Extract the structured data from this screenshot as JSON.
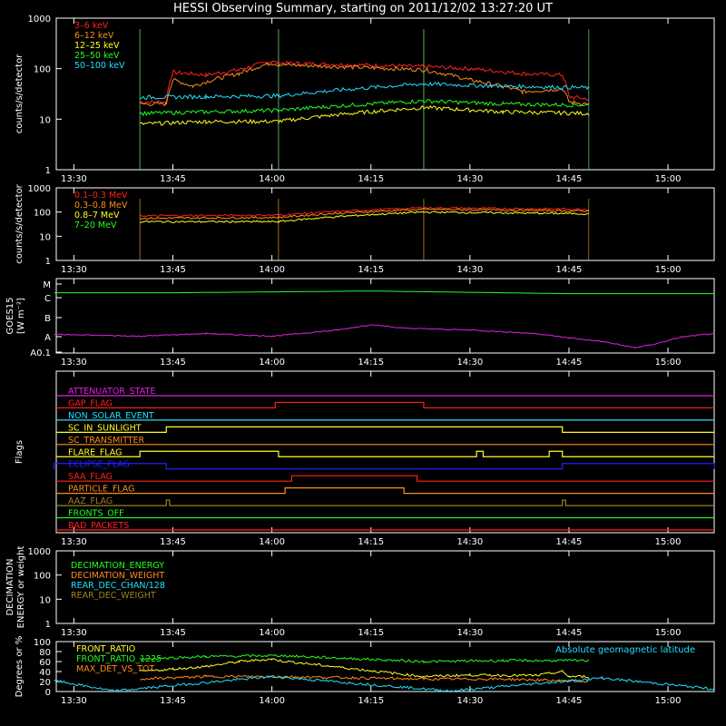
{
  "title": "HESSI Observing Summary, starting on 2011/12/02 13:27:20 UT",
  "colors": {
    "background": "#000000",
    "axis": "#ffffff",
    "red": "#ff2020",
    "orange": "#ff8c1a",
    "yellow": "#ffff20",
    "green": "#20ff20",
    "cyan": "#20e0ff",
    "magenta": "#e020e0",
    "blue": "#2020ff",
    "olive": "#a08020"
  },
  "time_ticks": [
    "13:30",
    "13:45",
    "14:00",
    "14:15",
    "14:30",
    "14:45",
    "15:00"
  ],
  "time_range": [
    "13:27:20",
    "15:07"
  ],
  "chart_data": [
    {
      "type": "line",
      "panel": "low-energy",
      "ylabel": "counts/s/detector",
      "yscale": "log",
      "ylim": [
        1,
        1000
      ],
      "yticks": [
        "1",
        "10",
        "100",
        "1000"
      ],
      "intervals": [
        [
          "13:40",
          "14:01"
        ],
        [
          "14:23",
          "14:48"
        ]
      ],
      "series": [
        {
          "name": "3–6 keV",
          "color": "red",
          "points": [
            [
              "13:40",
              22
            ],
            [
              "13:44",
              22
            ],
            [
              "13:45",
              85
            ],
            [
              "13:50",
              75
            ],
            [
              "13:55",
              95
            ],
            [
              "14:00",
              140
            ],
            [
              "14:01",
              130
            ],
            [
              "14:23",
              110
            ],
            [
              "14:30",
              100
            ],
            [
              "14:38",
              80
            ],
            [
              "14:44",
              75
            ],
            [
              "14:45",
              28
            ],
            [
              "14:48",
              25
            ]
          ]
        },
        {
          "name": "6–12 keV",
          "color": "orange",
          "points": [
            [
              "13:40",
              20
            ],
            [
              "13:44",
              20
            ],
            [
              "13:45",
              60
            ],
            [
              "13:48",
              45
            ],
            [
              "13:55",
              80
            ],
            [
              "14:00",
              130
            ],
            [
              "14:01",
              120
            ],
            [
              "14:23",
              95
            ],
            [
              "14:30",
              60
            ],
            [
              "14:38",
              35
            ],
            [
              "14:44",
              40
            ],
            [
              "14:45",
              22
            ],
            [
              "14:48",
              20
            ]
          ]
        },
        {
          "name": "12–25 keV",
          "color": "yellow",
          "points": [
            [
              "13:40",
              8
            ],
            [
              "13:50",
              9
            ],
            [
              "14:01",
              9
            ],
            [
              "14:23",
              17
            ],
            [
              "14:35",
              14
            ],
            [
              "14:48",
              13
            ]
          ]
        },
        {
          "name": "25–50 keV",
          "color": "green",
          "points": [
            [
              "13:40",
              13
            ],
            [
              "13:50",
              14
            ],
            [
              "14:01",
              15
            ],
            [
              "14:23",
              23
            ],
            [
              "14:35",
              20
            ],
            [
              "14:48",
              19
            ]
          ]
        },
        {
          "name": "50–100 keV",
          "color": "cyan",
          "points": [
            [
              "13:40",
              27
            ],
            [
              "13:50",
              28
            ],
            [
              "14:01",
              29
            ],
            [
              "14:23",
              50
            ],
            [
              "14:35",
              45
            ],
            [
              "14:48",
              42
            ]
          ]
        }
      ]
    },
    {
      "type": "line",
      "panel": "high-energy",
      "ylabel": "counts/s/detector",
      "yscale": "log",
      "ylim": [
        1,
        1000
      ],
      "yticks": [
        "1",
        "10",
        "100",
        "1000"
      ],
      "intervals": [
        [
          "13:40",
          "14:01"
        ],
        [
          "14:23",
          "14:48"
        ]
      ],
      "series": [
        {
          "name": "0.1–0.3 MeV",
          "color": "red",
          "points": [
            [
              "13:40",
              70
            ],
            [
              "14:01",
              75
            ],
            [
              "14:23",
              150
            ],
            [
              "14:48",
              130
            ]
          ]
        },
        {
          "name": "0.3–0.8 MeV",
          "color": "orange",
          "points": [
            [
              "13:40",
              55
            ],
            [
              "14:01",
              60
            ],
            [
              "14:23",
              130
            ],
            [
              "14:48",
              110
            ]
          ]
        },
        {
          "name": "0.8–7 MeV",
          "color": "yellow",
          "points": [
            [
              "13:40",
              40
            ],
            [
              "14:01",
              40
            ],
            [
              "14:23",
              100
            ],
            [
              "14:48",
              85
            ]
          ]
        },
        {
          "name": "7–20 MeV",
          "color": "green",
          "points": []
        }
      ]
    },
    {
      "type": "line",
      "panel": "goes",
      "ylabel": "GOES15",
      "ylabel2": "[W m⁻²]",
      "yticks": [
        "M",
        "C",
        "B",
        "A",
        "A0.1"
      ],
      "series": [
        {
          "name": "",
          "color": "green",
          "points": [
            [
              "13:27",
              2.0
            ],
            [
              "13:45",
              2.0
            ],
            [
              "14:15",
              2.1
            ],
            [
              "14:45",
              1.95
            ],
            [
              "15:07",
              1.95
            ]
          ]
        },
        {
          "name": "",
          "color": "magenta",
          "points": [
            [
              "13:27",
              -0.35
            ],
            [
              "13:40",
              -0.45
            ],
            [
              "13:50",
              -0.3
            ],
            [
              "14:00",
              -0.45
            ],
            [
              "14:10",
              -0.1
            ],
            [
              "14:15",
              0.2
            ],
            [
              "14:20",
              0.0
            ],
            [
              "14:30",
              -0.1
            ],
            [
              "14:40",
              -0.3
            ],
            [
              "14:45",
              -0.55
            ],
            [
              "14:50",
              -0.75
            ],
            [
              "14:55",
              -1.1
            ],
            [
              "14:58",
              -0.9
            ],
            [
              "15:02",
              -0.5
            ],
            [
              "15:07",
              -0.3
            ]
          ]
        }
      ]
    },
    {
      "type": "line",
      "panel": "flags",
      "ylabel": "Flags",
      "series": [
        {
          "name": "ATTENUATOR_STATE",
          "color": "magenta",
          "transitions": []
        },
        {
          "name": "GAP_FLAG",
          "color": "red",
          "transitions": [
            [
              "14:00:30",
              "14:23"
            ]
          ]
        },
        {
          "name": "NON_SOLAR_EVENT",
          "color": "cyan",
          "transitions": []
        },
        {
          "name": "SC_IN_SUNLIGHT",
          "color": "yellow",
          "transitions": [
            [
              "13:44",
              "14:44"
            ]
          ]
        },
        {
          "name": "SC_TRANSMITTER",
          "color": "orange",
          "transitions": []
        },
        {
          "name": "FLARE_FLAG",
          "color": "yellow",
          "transitions": [
            [
              "13:40",
              "14:01"
            ],
            [
              "14:31",
              "14:32"
            ],
            [
              "14:42",
              "14:44"
            ]
          ]
        },
        {
          "name": "ECLIPSE_FLAG",
          "color": "blue",
          "transitions": [
            [
              "13:27",
              "13:44"
            ],
            [
              "14:44",
              "15:07"
            ]
          ]
        },
        {
          "name": "SAA_FLAG",
          "color": "red",
          "transitions": [
            [
              "14:03",
              "14:22"
            ]
          ]
        },
        {
          "name": "PARTICLE_FLAG",
          "color": "orange",
          "transitions": [
            [
              "14:02",
              "14:20"
            ]
          ]
        },
        {
          "name": "AAZ_FLAG",
          "color": "olive",
          "transitions": [
            [
              "13:44",
              "13:44:30"
            ],
            [
              "14:44",
              "14:44:30"
            ]
          ]
        },
        {
          "name": "FRONTS_OFF",
          "color": "green",
          "transitions": []
        },
        {
          "name": "BAD_PACKETS",
          "color": "red",
          "transitions": []
        }
      ]
    },
    {
      "type": "line",
      "panel": "decimation",
      "ylabel": "DECIMATION",
      "ylabel2": "ENERGY or weight",
      "yscale": "log",
      "ylim": [
        1,
        1000
      ],
      "yticks": [
        "1",
        "10",
        "100",
        "1000"
      ],
      "series": [
        {
          "name": "DECIMATION_ENERGY",
          "color": "green",
          "points": []
        },
        {
          "name": "DECIMATION_WEIGHT",
          "color": "orange",
          "points": []
        },
        {
          "name": "REAR_DEC_CHAN/128",
          "color": "cyan",
          "points": []
        },
        {
          "name": "REAR_DEC_WEIGHT",
          "color": "olive",
          "points": []
        }
      ]
    },
    {
      "type": "line",
      "panel": "ratios",
      "ylabel": "Degrees or %",
      "ylim": [
        0,
        100
      ],
      "yticks": [
        "0",
        "20",
        "40",
        "60",
        "80",
        "100"
      ],
      "annotation": "Absolute geomagnetic latitude",
      "series": [
        {
          "name": "FRONT_RATIO",
          "color": "yellow",
          "points": [
            [
              "13:40",
              40
            ],
            [
              "13:45",
              45
            ],
            [
              "13:50",
              50
            ],
            [
              "13:55",
              60
            ],
            [
              "14:00",
              65
            ],
            [
              "14:01",
              62
            ],
            [
              "14:23",
              30
            ],
            [
              "14:30",
              33
            ],
            [
              "14:40",
              32
            ],
            [
              "14:44",
              40
            ],
            [
              "14:45",
              30
            ],
            [
              "14:48",
              30
            ]
          ]
        },
        {
          "name": "FRONT_RATIO_1225",
          "color": "green",
          "points": [
            [
              "13:40",
              65
            ],
            [
              "13:50",
              70
            ],
            [
              "14:01",
              72
            ],
            [
              "14:23",
              60
            ],
            [
              "14:35",
              62
            ],
            [
              "14:48",
              62
            ]
          ]
        },
        {
          "name": "MAX_DET_VS_TOT",
          "color": "orange",
          "points": [
            [
              "13:40",
              25
            ],
            [
              "13:50",
              30
            ],
            [
              "14:01",
              30
            ],
            [
              "14:23",
              25
            ],
            [
              "14:35",
              25
            ],
            [
              "14:48",
              20
            ]
          ]
        },
        {
          "name": "Absolute geomagnetic latitude",
          "color": "cyan",
          "points": [
            [
              "13:27",
              22
            ],
            [
              "13:36",
              1
            ],
            [
              "14:00",
              30
            ],
            [
              "14:27",
              1
            ],
            [
              "14:50",
              27
            ],
            [
              "15:07",
              5
            ]
          ]
        }
      ]
    }
  ]
}
